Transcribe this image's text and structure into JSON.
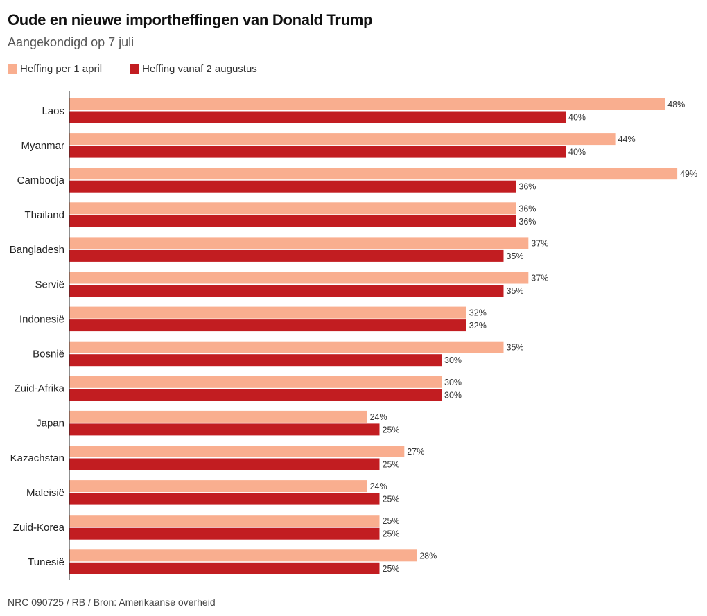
{
  "chart_data": {
    "type": "bar",
    "orientation": "horizontal",
    "title": "Oude en nieuwe importheffingen van Donald Trump",
    "subtitle": "Aangekondigd op 7 juli",
    "categories": [
      "Laos",
      "Myanmar",
      "Cambodja",
      "Thailand",
      "Bangladesh",
      "Servië",
      "Indonesië",
      "Bosnië",
      "Zuid-Afrika",
      "Japan",
      "Kazachstan",
      "Maleisië",
      "Zuid-Korea",
      "Tunesië"
    ],
    "series": [
      {
        "name": "Heffing per 1 april",
        "color": "#f9ae8f",
        "values": [
          48,
          44,
          49,
          36,
          37,
          37,
          32,
          35,
          30,
          24,
          27,
          24,
          25,
          28
        ]
      },
      {
        "name": "Heffing vanaf 2 augustus",
        "color": "#c21d21",
        "values": [
          40,
          40,
          36,
          36,
          35,
          35,
          32,
          30,
          30,
          25,
          25,
          25,
          25,
          25
        ]
      }
    ],
    "value_suffix": "%",
    "xlim": [
      0,
      50
    ],
    "xlabel": "",
    "ylabel": "",
    "legend_position": "top-left",
    "grid": false
  },
  "footer": "NRC 090725 / RB / Bron: Amerikaanse overheid"
}
